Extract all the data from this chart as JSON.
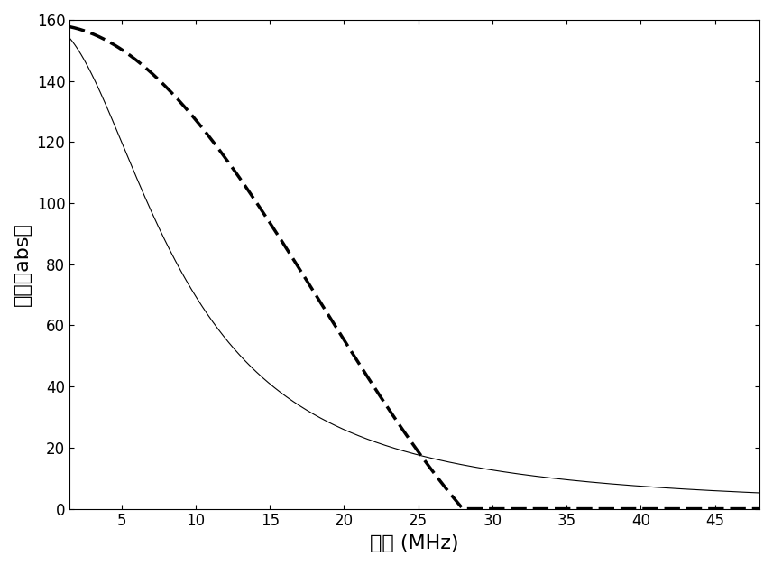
{
  "xlabel": "频率 (MHz)",
  "ylabel": "幅度（abs）",
  "xlim": [
    1.5,
    48
  ],
  "ylim": [
    0,
    160
  ],
  "xticks": [
    5,
    10,
    15,
    20,
    25,
    30,
    35,
    40,
    45
  ],
  "yticks": [
    0,
    20,
    40,
    60,
    80,
    100,
    120,
    140,
    160
  ],
  "background_color": "#ffffff",
  "solid_color": "#000000",
  "dashed_color": "#000000",
  "solid_linewidth": 0.8,
  "dashed_linewidth": 2.5,
  "amplitude": 158.5,
  "f0_solid": 8.84,
  "f_null_dashed": 28.0,
  "x_start": 1.5,
  "x_end": 48,
  "n_points": 3000,
  "xlabel_fontsize": 16,
  "ylabel_fontsize": 16,
  "tick_fontsize": 12
}
